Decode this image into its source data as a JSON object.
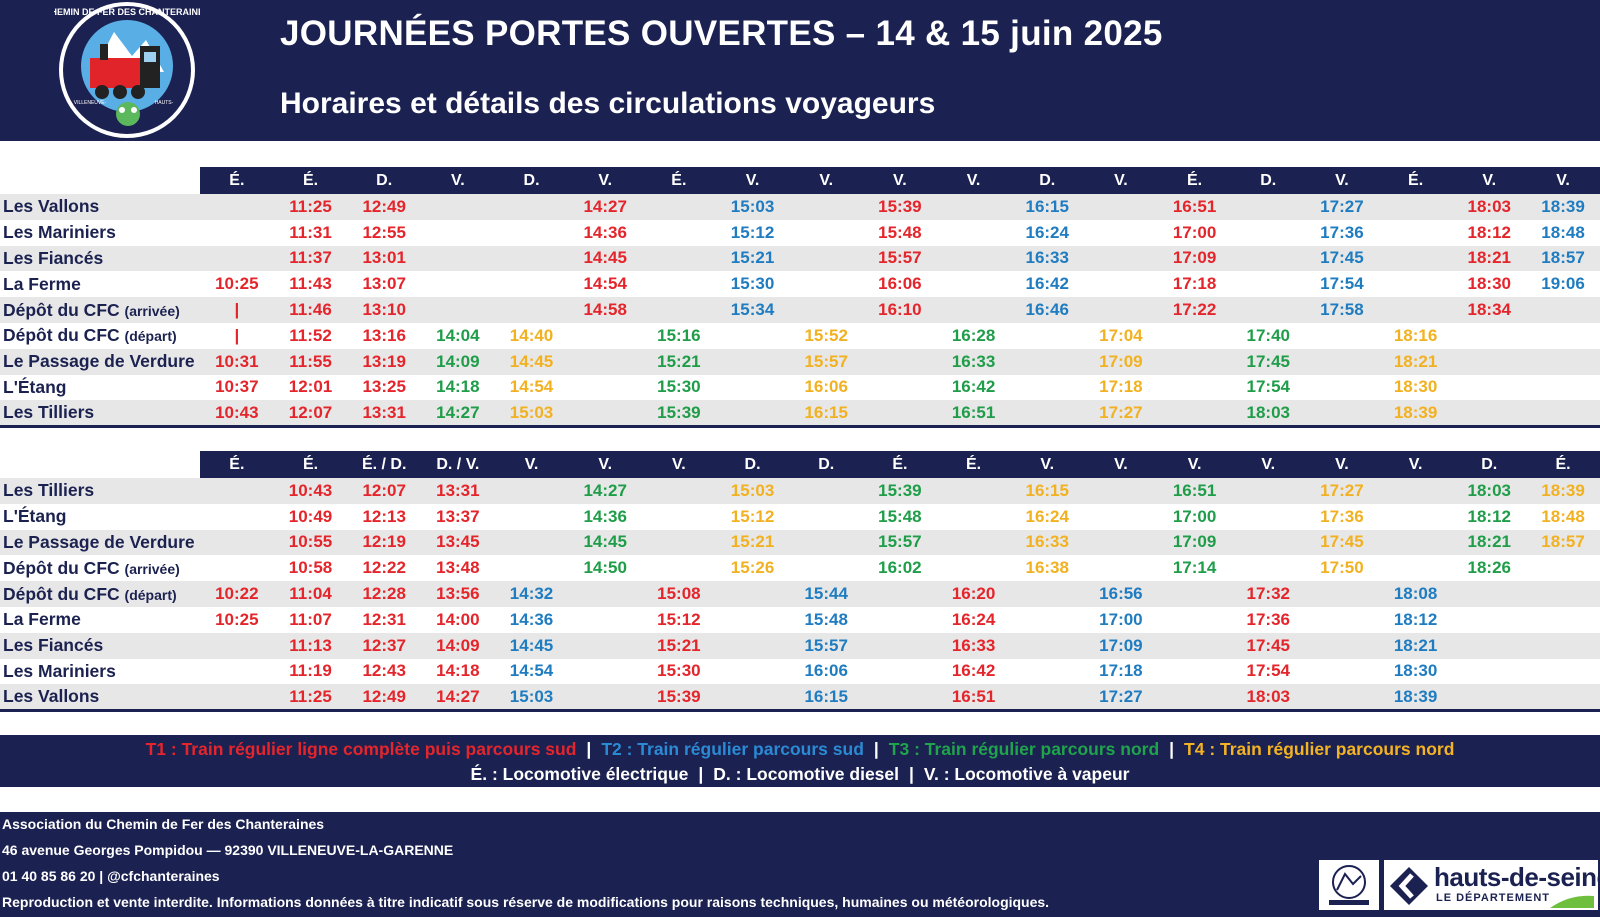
{
  "header": {
    "title": "JOURNÉES PORTES OUVERTES – 14 & 15 juin 2025",
    "subtitle": "Horaires et détails des circulations voyageurs",
    "logo_text": "CHEMIN DE FER DES CHANTERAINES",
    "logo_left": "VILLENEUVE-LA-GARENNE 92390",
    "logo_right": "HAUTS-DE-SEINE"
  },
  "colors": {
    "navy": "#1b2151",
    "T1": "#e4252b",
    "T2": "#1f7cc1",
    "T3": "#1f9d49",
    "T4": "#f4b323"
  },
  "timetable1": {
    "locos": [
      "É.",
      "É.",
      "D.",
      "V.",
      "D.",
      "V.",
      "É.",
      "V.",
      "V.",
      "V.",
      "V.",
      "D.",
      "V.",
      "É.",
      "D.",
      "V.",
      "É.",
      "V.",
      "V."
    ],
    "trains": [
      "T1",
      "T1",
      "T1",
      "T3",
      "T4",
      "T1",
      "T3",
      "T2",
      "T4",
      "T1",
      "T3",
      "T2",
      "T4",
      "T1",
      "T3",
      "T2",
      "T4",
      "T1",
      "T2"
    ],
    "rows": [
      {
        "station": "Les Vallons",
        "note": "",
        "times": [
          "",
          "11:25",
          "12:49",
          "",
          "",
          "14:27",
          "",
          "15:03",
          "",
          "15:39",
          "",
          "16:15",
          "",
          "16:51",
          "",
          "17:27",
          "",
          "18:03",
          "18:39"
        ]
      },
      {
        "station": "Les Mariniers",
        "note": "",
        "times": [
          "",
          "11:31",
          "12:55",
          "",
          "",
          "14:36",
          "",
          "15:12",
          "",
          "15:48",
          "",
          "16:24",
          "",
          "17:00",
          "",
          "17:36",
          "",
          "18:12",
          "18:48"
        ]
      },
      {
        "station": "Les Fiancés",
        "note": "",
        "times": [
          "",
          "11:37",
          "13:01",
          "",
          "",
          "14:45",
          "",
          "15:21",
          "",
          "15:57",
          "",
          "16:33",
          "",
          "17:09",
          "",
          "17:45",
          "",
          "18:21",
          "18:57"
        ]
      },
      {
        "station": "La Ferme",
        "note": "",
        "times": [
          "10:25",
          "11:43",
          "13:07",
          "",
          "",
          "14:54",
          "",
          "15:30",
          "",
          "16:06",
          "",
          "16:42",
          "",
          "17:18",
          "",
          "17:54",
          "",
          "18:30",
          "19:06"
        ]
      },
      {
        "station": "Dépôt du CFC",
        "note": "(arrivée)",
        "times": [
          "|",
          "11:46",
          "13:10",
          "",
          "",
          "14:58",
          "",
          "15:34",
          "",
          "16:10",
          "",
          "16:46",
          "",
          "17:22",
          "",
          "17:58",
          "",
          "18:34",
          ""
        ]
      },
      {
        "station": "Dépôt du CFC",
        "note": "(départ)",
        "times": [
          "|",
          "11:52",
          "13:16",
          "14:04",
          "14:40",
          "",
          "15:16",
          "",
          "15:52",
          "",
          "16:28",
          "",
          "17:04",
          "",
          "17:40",
          "",
          "18:16",
          "",
          ""
        ]
      },
      {
        "station": "Le Passage de Verdure",
        "note": "",
        "times": [
          "10:31",
          "11:55",
          "13:19",
          "14:09",
          "14:45",
          "",
          "15:21",
          "",
          "15:57",
          "",
          "16:33",
          "",
          "17:09",
          "",
          "17:45",
          "",
          "18:21",
          "",
          ""
        ]
      },
      {
        "station": "L'Étang",
        "note": "",
        "times": [
          "10:37",
          "12:01",
          "13:25",
          "14:18",
          "14:54",
          "",
          "15:30",
          "",
          "16:06",
          "",
          "16:42",
          "",
          "17:18",
          "",
          "17:54",
          "",
          "18:30",
          "",
          ""
        ]
      },
      {
        "station": "Les Tilliers",
        "note": "",
        "times": [
          "10:43",
          "12:07",
          "13:31",
          "14:27",
          "15:03",
          "",
          "15:39",
          "",
          "16:15",
          "",
          "16:51",
          "",
          "17:27",
          "",
          "18:03",
          "",
          "18:39",
          "",
          ""
        ]
      }
    ]
  },
  "timetable2": {
    "locos": [
      "É.",
      "É.",
      "É. / D.",
      "D. / V.",
      "V.",
      "V.",
      "V.",
      "D.",
      "D.",
      "É.",
      "É.",
      "V.",
      "V.",
      "V.",
      "V.",
      "V.",
      "V.",
      "D.",
      "É."
    ],
    "trains": [
      "T1",
      "T1",
      "T1",
      "T1",
      "T2",
      "T3",
      "T1",
      "T4",
      "T2",
      "T3",
      "T1",
      "T4",
      "T2",
      "T3",
      "T1",
      "T4",
      "T2",
      "T3",
      "T4"
    ],
    "rows": [
      {
        "station": "Les Tilliers",
        "note": "",
        "times": [
          "",
          "10:43",
          "12:07",
          "13:31",
          "",
          "14:27",
          "",
          "15:03",
          "",
          "15:39",
          "",
          "16:15",
          "",
          "16:51",
          "",
          "17:27",
          "",
          "18:03",
          "18:39"
        ]
      },
      {
        "station": "L'Étang",
        "note": "",
        "times": [
          "",
          "10:49",
          "12:13",
          "13:37",
          "",
          "14:36",
          "",
          "15:12",
          "",
          "15:48",
          "",
          "16:24",
          "",
          "17:00",
          "",
          "17:36",
          "",
          "18:12",
          "18:48"
        ]
      },
      {
        "station": "Le Passage de Verdure",
        "note": "",
        "times": [
          "",
          "10:55",
          "12:19",
          "13:45",
          "",
          "14:45",
          "",
          "15:21",
          "",
          "15:57",
          "",
          "16:33",
          "",
          "17:09",
          "",
          "17:45",
          "",
          "18:21",
          "18:57"
        ]
      },
      {
        "station": "Dépôt du CFC",
        "note": "(arrivée)",
        "times": [
          "",
          "10:58",
          "12:22",
          "13:48",
          "",
          "14:50",
          "",
          "15:26",
          "",
          "16:02",
          "",
          "16:38",
          "",
          "17:14",
          "",
          "17:50",
          "",
          "18:26",
          ""
        ]
      },
      {
        "station": "Dépôt du CFC",
        "note": "(départ)",
        "times": [
          "10:22",
          "11:04",
          "12:28",
          "13:56",
          "14:32",
          "",
          "15:08",
          "",
          "15:44",
          "",
          "16:20",
          "",
          "16:56",
          "",
          "17:32",
          "",
          "18:08",
          "",
          ""
        ]
      },
      {
        "station": "La Ferme",
        "note": "",
        "times": [
          "10:25",
          "11:07",
          "12:31",
          "14:00",
          "14:36",
          "",
          "15:12",
          "",
          "15:48",
          "",
          "16:24",
          "",
          "17:00",
          "",
          "17:36",
          "",
          "18:12",
          "",
          ""
        ]
      },
      {
        "station": "Les Fiancés",
        "note": "",
        "times": [
          "",
          "11:13",
          "12:37",
          "14:09",
          "14:45",
          "",
          "15:21",
          "",
          "15:57",
          "",
          "16:33",
          "",
          "17:09",
          "",
          "17:45",
          "",
          "18:21",
          "",
          ""
        ]
      },
      {
        "station": "Les Mariniers",
        "note": "",
        "times": [
          "",
          "11:19",
          "12:43",
          "14:18",
          "14:54",
          "",
          "15:30",
          "",
          "16:06",
          "",
          "16:42",
          "",
          "17:18",
          "",
          "17:54",
          "",
          "18:30",
          "",
          ""
        ]
      },
      {
        "station": "Les Vallons",
        "note": "",
        "times": [
          "",
          "11:25",
          "12:49",
          "14:27",
          "15:03",
          "",
          "15:39",
          "",
          "16:15",
          "",
          "16:51",
          "",
          "17:27",
          "",
          "18:03",
          "",
          "18:39",
          "",
          ""
        ]
      }
    ]
  },
  "legend": {
    "t1": "T1 : Train régulier ligne complète puis parcours sud",
    "t2": "T2 : Train régulier parcours sud",
    "t3": "T3 : Train régulier parcours nord",
    "t4": "T4 : Train régulier parcours nord",
    "sep": "|",
    "loco_e": "É. : Locomotive électrique",
    "loco_d": "D. : Locomotive diesel",
    "loco_v": "V. : Locomotive à vapeur"
  },
  "footer": {
    "org": "Association du Chemin de Fer des Chanteraines",
    "address": "46 avenue Georges Pompidou — 92390 VILLENEUVE-LA-GARENNE",
    "contact": "01 40 85 86 20 | @cfchanteraines",
    "legal": "Reproduction et vente interdite. Informations données à titre indicatif sous réserve de modifications pour raisons techniques, humaines ou météorologiques.",
    "partner_name": "hauts-de-seine",
    "partner_sub": "LE DÉPARTEMENT"
  }
}
